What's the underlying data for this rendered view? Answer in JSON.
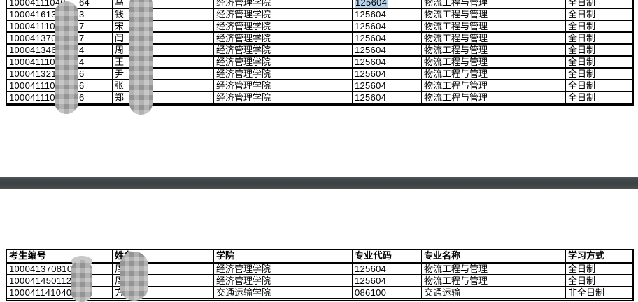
{
  "columns": {
    "candidate_no": "考生编号",
    "name": "姓名",
    "college": "学院",
    "major_code": "专业代码",
    "major_name": "专业名称",
    "study_mode": "学习方式"
  },
  "top_table": {
    "rows": [
      {
        "num_pre": "10004111040",
        "num_suf": "64",
        "name": "马",
        "college": "经济管理学院",
        "code": "125604",
        "major": "物流工程与管理",
        "mode": "全日制",
        "code_highlighted": true
      },
      {
        "num_pre": "10004161331",
        "num_suf": "3",
        "name": "钱",
        "college": "经济管理学院",
        "code": "125604",
        "major": "物流工程与管理",
        "mode": "全日制",
        "code_highlighted": false
      },
      {
        "num_pre": "100041110402",
        "num_suf": "7",
        "name": "宋",
        "college": "经济管理学院",
        "code": "125604",
        "major": "物流工程与管理",
        "mode": "全日制",
        "code_highlighted": false
      },
      {
        "num_pre": "100041370209",
        "num_suf": "7",
        "name": "闫",
        "college": "经济管理学院",
        "code": "125604",
        "major": "物流工程与管理",
        "mode": "全日制",
        "code_highlighted": false
      },
      {
        "num_pre": "100041346009",
        "num_suf": "4",
        "name": "周",
        "college": "经济管理学院",
        "code": "125604",
        "major": "物流工程与管理",
        "mode": "全日制",
        "code_highlighted": false
      },
      {
        "num_pre": "100041110402",
        "num_suf": "4",
        "name": "王",
        "college": "经济管理学院",
        "code": "125604",
        "major": "物流工程与管理",
        "mode": "全日制",
        "code_highlighted": false
      },
      {
        "num_pre": "100041321108",
        "num_suf": "6",
        "name": "尹",
        "college": "经济管理学院",
        "code": "125604",
        "major": "物流工程与管理",
        "mode": "全日制",
        "code_highlighted": false
      },
      {
        "num_pre": "100041110402",
        "num_suf": "6",
        "name": "张",
        "college": "经济管理学院",
        "code": "125604",
        "major": "物流工程与管理",
        "mode": "全日制",
        "code_highlighted": false
      },
      {
        "num_pre": "100041110402",
        "num_suf": "6",
        "name": "郑",
        "college": "经济管理学院",
        "code": "125604",
        "major": "物流工程与管理",
        "mode": "全日制",
        "code_highlighted": false
      }
    ]
  },
  "bottom_table": {
    "headers": [
      "考生编号",
      "姓名",
      "学院",
      "专业代码",
      "专业名称",
      "学习方式"
    ],
    "rows": [
      {
        "num_pre": "1000413708103",
        "num_suf": "",
        "name": "周",
        "college": "经济管理学院",
        "code": "125604",
        "major": "物流工程与管理",
        "mode": "全日制",
        "code_highlighted": false
      },
      {
        "num_pre": "1000414501123",
        "num_suf": "",
        "name": "周",
        "college": "经济管理学院",
        "code": "125604",
        "major": "物流工程与管理",
        "mode": "全日制",
        "code_highlighted": false
      },
      {
        "num_pre": "1000411410400",
        "num_suf": "",
        "name": "方",
        "college": "交通运输学院",
        "code": "086100",
        "major": "交通运输",
        "mode": "非全日制",
        "code_highlighted": false
      }
    ]
  },
  "highlight": {
    "search_match_color": "#b5d3ea"
  },
  "divider": {
    "color_top": "#54585b",
    "color_mid": "#3d4245",
    "color_bottom": "#505456"
  }
}
